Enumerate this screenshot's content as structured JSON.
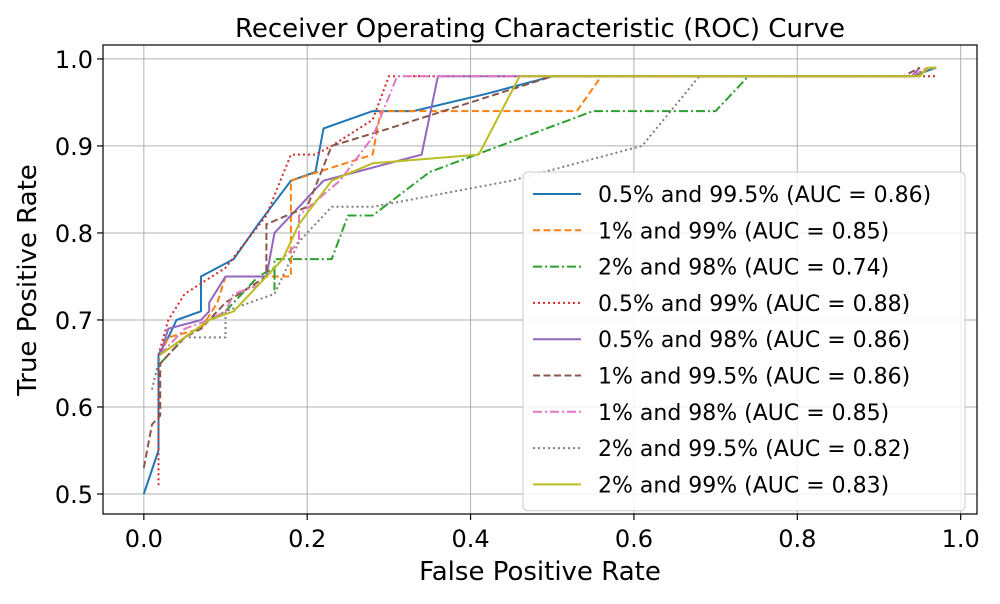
{
  "chart_data": {
    "type": "line",
    "title": "Receiver Operating Characteristic (ROC) Curve",
    "xlabel": "False Positive Rate",
    "ylabel": "True Positive Rate",
    "xlim": [
      -0.05,
      1.02
    ],
    "ylim": [
      0.477,
      1.016
    ],
    "xticks": [
      0.0,
      0.2,
      0.4,
      0.6,
      0.8,
      1.0
    ],
    "xtick_labels": [
      "0.0",
      "0.2",
      "0.4",
      "0.6",
      "0.8",
      "1.0"
    ],
    "yticks": [
      0.5,
      0.6,
      0.7,
      0.8,
      0.9,
      1.0
    ],
    "ytick_labels": [
      "0.5",
      "0.6",
      "0.7",
      "0.8",
      "0.9",
      "1.0"
    ],
    "grid": true,
    "legend_position": "lower-right",
    "series": [
      {
        "name": "0.5% and 99.5% (AUC = 0.86)",
        "color": "#1f77b4",
        "dash": "solid",
        "points": [
          [
            0,
            0.5
          ],
          [
            0.018,
            0.55
          ],
          [
            0.018,
            0.66
          ],
          [
            0.03,
            0.68
          ],
          [
            0.04,
            0.7
          ],
          [
            0.07,
            0.71
          ],
          [
            0.07,
            0.75
          ],
          [
            0.11,
            0.77
          ],
          [
            0.14,
            0.81
          ],
          [
            0.18,
            0.86
          ],
          [
            0.21,
            0.87
          ],
          [
            0.22,
            0.92
          ],
          [
            0.28,
            0.94
          ],
          [
            0.33,
            0.94
          ],
          [
            0.42,
            0.96
          ],
          [
            0.5,
            0.98
          ],
          [
            0.94,
            0.98
          ],
          [
            0.97,
            0.99
          ]
        ]
      },
      {
        "name": "1% and 99% (AUC = 0.85)",
        "color": "#ff7f0e",
        "dash": "dashed",
        "points": [
          [
            0.02,
            0.66
          ],
          [
            0.03,
            0.68
          ],
          [
            0.07,
            0.69
          ],
          [
            0.09,
            0.72
          ],
          [
            0.1,
            0.75
          ],
          [
            0.14,
            0.75
          ],
          [
            0.16,
            0.75
          ],
          [
            0.18,
            0.75
          ],
          [
            0.18,
            0.86
          ],
          [
            0.28,
            0.89
          ],
          [
            0.29,
            0.94
          ],
          [
            0.53,
            0.94
          ],
          [
            0.56,
            0.98
          ],
          [
            0.94,
            0.98
          ],
          [
            0.96,
            0.99
          ]
        ]
      },
      {
        "name": "2% and 98% (AUC = 0.74)",
        "color": "#2ca02c",
        "dash": "dashdot",
        "points": [
          [
            0.02,
            0.65
          ],
          [
            0.05,
            0.68
          ],
          [
            0.08,
            0.7
          ],
          [
            0.1,
            0.71
          ],
          [
            0.14,
            0.75
          ],
          [
            0.16,
            0.76
          ],
          [
            0.16,
            0.735
          ],
          [
            0.16,
            0.77
          ],
          [
            0.23,
            0.77
          ],
          [
            0.25,
            0.82
          ],
          [
            0.28,
            0.82
          ],
          [
            0.35,
            0.87
          ],
          [
            0.55,
            0.94
          ],
          [
            0.7,
            0.94
          ],
          [
            0.74,
            0.98
          ],
          [
            0.94,
            0.98
          ],
          [
            0.97,
            0.99
          ]
        ]
      },
      {
        "name": "0.5% and 99% (AUC = 0.88)",
        "color": "#d62728",
        "dash": "dotted",
        "points": [
          [
            0.018,
            0.51
          ],
          [
            0.018,
            0.66
          ],
          [
            0.03,
            0.7
          ],
          [
            0.05,
            0.73
          ],
          [
            0.1,
            0.76
          ],
          [
            0.15,
            0.82
          ],
          [
            0.18,
            0.89
          ],
          [
            0.21,
            0.89
          ],
          [
            0.23,
            0.9
          ],
          [
            0.28,
            0.93
          ],
          [
            0.3,
            0.98
          ],
          [
            0.92,
            0.98
          ],
          [
            0.95,
            0.98
          ],
          [
            0.97,
            0.98
          ]
        ]
      },
      {
        "name": "0.5% and 98% (AUC = 0.86)",
        "color": "#9467bd",
        "dash": "solid",
        "points": [
          [
            0.02,
            0.66
          ],
          [
            0.03,
            0.69
          ],
          [
            0.07,
            0.7
          ],
          [
            0.08,
            0.71
          ],
          [
            0.08,
            0.72
          ],
          [
            0.1,
            0.75
          ],
          [
            0.15,
            0.75
          ],
          [
            0.16,
            0.8
          ],
          [
            0.22,
            0.86
          ],
          [
            0.26,
            0.87
          ],
          [
            0.34,
            0.89
          ],
          [
            0.36,
            0.98
          ],
          [
            0.94,
            0.98
          ],
          [
            0.95,
            0.99
          ]
        ]
      },
      {
        "name": "1% and 99.5% (AUC = 0.86)",
        "color": "#8c564b",
        "dash": "dashed",
        "points": [
          [
            0,
            0.53
          ],
          [
            0.01,
            0.58
          ],
          [
            0.02,
            0.59
          ],
          [
            0.02,
            0.65
          ],
          [
            0.05,
            0.68
          ],
          [
            0.07,
            0.69
          ],
          [
            0.1,
            0.72
          ],
          [
            0.15,
            0.75
          ],
          [
            0.15,
            0.81
          ],
          [
            0.2,
            0.83
          ],
          [
            0.23,
            0.9
          ],
          [
            0.3,
            0.92
          ],
          [
            0.4,
            0.95
          ],
          [
            0.5,
            0.98
          ],
          [
            0.93,
            0.98
          ],
          [
            0.95,
            0.99
          ]
        ]
      },
      {
        "name": "1% and 98% (AUC = 0.85)",
        "color": "#e377c2",
        "dash": "dashdot",
        "points": [
          [
            0.02,
            0.66
          ],
          [
            0.05,
            0.69
          ],
          [
            0.08,
            0.7
          ],
          [
            0.1,
            0.71
          ],
          [
            0.11,
            0.73
          ],
          [
            0.14,
            0.74
          ],
          [
            0.16,
            0.76
          ],
          [
            0.19,
            0.79
          ],
          [
            0.19,
            0.82
          ],
          [
            0.24,
            0.86
          ],
          [
            0.28,
            0.91
          ],
          [
            0.31,
            0.98
          ],
          [
            0.94,
            0.98
          ],
          [
            0.96,
            0.99
          ]
        ]
      },
      {
        "name": "2% and 99.5% (AUC = 0.82)",
        "color": "#7f7f7f",
        "dash": "dotted",
        "points": [
          [
            0.01,
            0.62
          ],
          [
            0.02,
            0.66
          ],
          [
            0.05,
            0.68
          ],
          [
            0.1,
            0.68
          ],
          [
            0.1,
            0.71
          ],
          [
            0.16,
            0.73
          ],
          [
            0.19,
            0.79
          ],
          [
            0.23,
            0.83
          ],
          [
            0.28,
            0.83
          ],
          [
            0.45,
            0.86
          ],
          [
            0.61,
            0.9
          ],
          [
            0.68,
            0.98
          ],
          [
            0.94,
            0.98
          ],
          [
            0.97,
            0.99
          ]
        ]
      },
      {
        "name": "2% and 99% (AUC = 0.83)",
        "color": "#bcbd22",
        "dash": "solid",
        "points": [
          [
            0.02,
            0.66
          ],
          [
            0.05,
            0.68
          ],
          [
            0.08,
            0.7
          ],
          [
            0.11,
            0.71
          ],
          [
            0.14,
            0.74
          ],
          [
            0.17,
            0.77
          ],
          [
            0.19,
            0.81
          ],
          [
            0.23,
            0.86
          ],
          [
            0.28,
            0.88
          ],
          [
            0.41,
            0.89
          ],
          [
            0.46,
            0.98
          ],
          [
            0.95,
            0.98
          ],
          [
            0.96,
            0.99
          ],
          [
            0.97,
            0.99
          ]
        ]
      }
    ]
  }
}
